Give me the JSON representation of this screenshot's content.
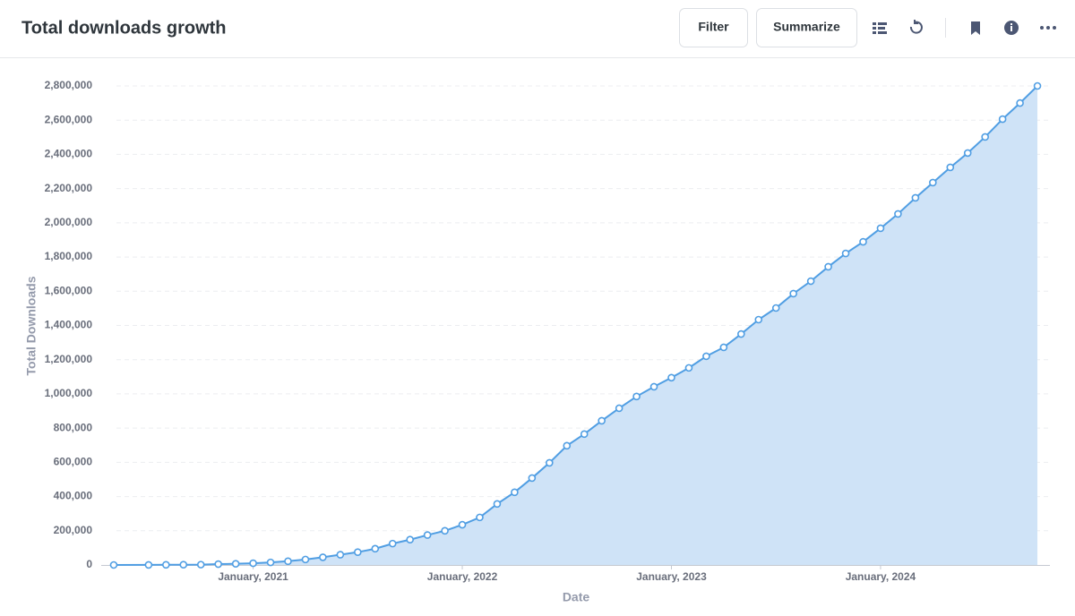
{
  "header": {
    "title": "Total downloads growth",
    "buttons": [
      "Filter",
      "Summarize"
    ]
  },
  "chart_data": {
    "type": "area",
    "xlabel": "Date",
    "ylabel": "Total Downloads",
    "color": "#509ee3",
    "fill_color": "#cfe3f7",
    "grid": true,
    "x": [
      "2020-05",
      "2020-07",
      "2020-08",
      "2020-09",
      "2020-10",
      "2020-11",
      "2020-12",
      "2021-01",
      "2021-02",
      "2021-03",
      "2021-04",
      "2021-05",
      "2021-06",
      "2021-07",
      "2021-08",
      "2021-09",
      "2021-10",
      "2021-11",
      "2021-12",
      "2022-01",
      "2022-02",
      "2022-03",
      "2022-04",
      "2022-05",
      "2022-06",
      "2022-07",
      "2022-08",
      "2022-09",
      "2022-10",
      "2022-11",
      "2022-12",
      "2023-01",
      "2023-02",
      "2023-03",
      "2023-04",
      "2023-05",
      "2023-06",
      "2023-07",
      "2023-08",
      "2023-09",
      "2023-10",
      "2023-11",
      "2023-12",
      "2024-01",
      "2024-02",
      "2024-03",
      "2024-04",
      "2024-05",
      "2024-06",
      "2024-07",
      "2024-08",
      "2024-09",
      "2024-10"
    ],
    "values": [
      0,
      500,
      1000,
      1500,
      2000,
      5000,
      7000,
      10000,
      15000,
      22000,
      32000,
      45000,
      60000,
      75000,
      95000,
      125000,
      148000,
      175000,
      200000,
      235000,
      278000,
      357000,
      425000,
      508000,
      597000,
      697000,
      765000,
      843000,
      916000,
      985000,
      1042000,
      1095000,
      1152000,
      1220000,
      1272000,
      1350000,
      1434000,
      1502000,
      1586000,
      1659000,
      1743000,
      1821000,
      1889000,
      1968000,
      2052000,
      2146000,
      2235000,
      2324000,
      2408000,
      2502000,
      2606000,
      2700000,
      2800000
    ],
    "xlim": [
      "2020-04",
      "2024-11"
    ],
    "xticks": [
      {
        "value": "2021-01",
        "label": "January, 2021"
      },
      {
        "value": "2022-01",
        "label": "January, 2022"
      },
      {
        "value": "2023-01",
        "label": "January, 2023"
      },
      {
        "value": "2024-01",
        "label": "January, 2024"
      }
    ],
    "ylim": [
      0,
      2800000
    ],
    "yticks": [
      0,
      {
        "value": 200000,
        "label": "200,000"
      },
      {
        "value": 400000,
        "label": "400,000"
      },
      {
        "value": 600000,
        "label": "600,000"
      },
      {
        "value": 800000,
        "label": "800,000"
      },
      {
        "value": 1000000,
        "label": "1,000,000"
      },
      {
        "value": 1200000,
        "label": "1,200,000"
      },
      {
        "value": 1400000,
        "label": "1,400,000"
      },
      {
        "value": 1600000,
        "label": "1,600,000"
      },
      {
        "value": 1800000,
        "label": "1,800,000"
      },
      {
        "value": 2000000,
        "label": "2,000,000"
      },
      {
        "value": 2200000,
        "label": "2,200,000"
      },
      {
        "value": 2400000,
        "label": "2,400,000"
      },
      {
        "value": 2600000,
        "label": "2,600,000"
      },
      {
        "value": 2800000,
        "label": "2,800,000"
      }
    ]
  }
}
